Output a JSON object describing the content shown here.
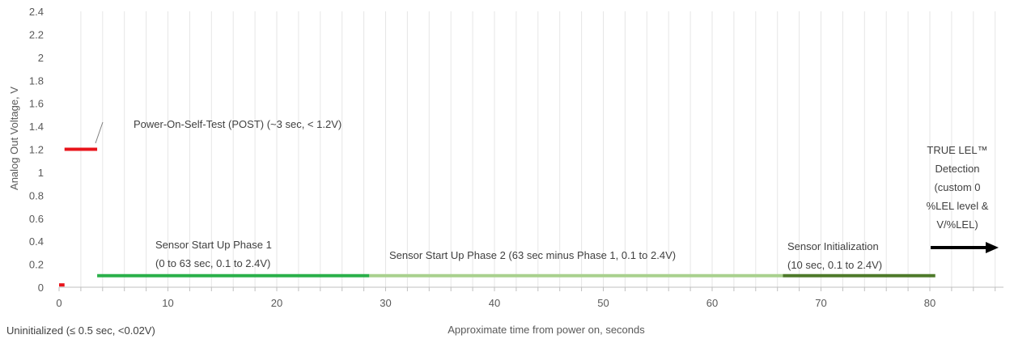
{
  "chart_data": {
    "type": "line",
    "title": "",
    "xlabel": "Approximate time from power on, seconds",
    "ylabel": "Analog Out Voltage, V",
    "xlim": [
      0,
      87
    ],
    "ylim": [
      0,
      2.4
    ],
    "x_ticks": [
      "0",
      "10",
      "20",
      "30",
      "40",
      "50",
      "60",
      "70",
      "80"
    ],
    "y_ticks": [
      "0",
      "0.2",
      "0.4",
      "0.6",
      "0.8",
      "1",
      "1.2",
      "1.4",
      "1.6",
      "1.8",
      "2",
      "2.2",
      "2.4"
    ],
    "grid": "vertical",
    "colors": {
      "uninitialized": "#e8141b",
      "post": "#e8141b",
      "phase1": "#2ab04a",
      "phase2": "#a9d18e",
      "initialization": "#4e7a2a",
      "arrow": "#000000"
    },
    "series": [
      {
        "key": "uninitialized",
        "x": [
          0,
          0.5
        ],
        "y": [
          0.02,
          0.02
        ]
      },
      {
        "key": "post",
        "x": [
          0.5,
          3.5
        ],
        "y": [
          1.2,
          1.2
        ]
      },
      {
        "key": "phase1",
        "x": [
          3.5,
          28.5
        ],
        "y": [
          0.1,
          0.1
        ]
      },
      {
        "key": "phase2",
        "x": [
          28.5,
          66.5
        ],
        "y": [
          0.1,
          0.1
        ]
      },
      {
        "key": "initialization",
        "x": [
          66.5,
          80.5
        ],
        "y": [
          0.1,
          0.1
        ]
      }
    ],
    "annotations": {
      "uninitialized": "Uninitialized (≤ 0.5 sec, <0.02V)",
      "post": "Power-On-Self-Test (POST) (~3 sec, < 1.2V)",
      "phase1_line1": "Sensor Start Up Phase 1",
      "phase1_line2": "(0 to 63 sec, 0.1 to 2.4V)",
      "phase2": "Sensor Start Up Phase 2 (63 sec minus Phase 1, 0.1 to 2.4V)",
      "init_line1": "Sensor Initialization",
      "init_line2": "(10 sec, 0.1 to 2.4V)",
      "true_lel_lines": [
        "TRUE LEL™",
        "Detection",
        "(custom 0",
        "%LEL level &",
        "V/%LEL)"
      ]
    }
  }
}
